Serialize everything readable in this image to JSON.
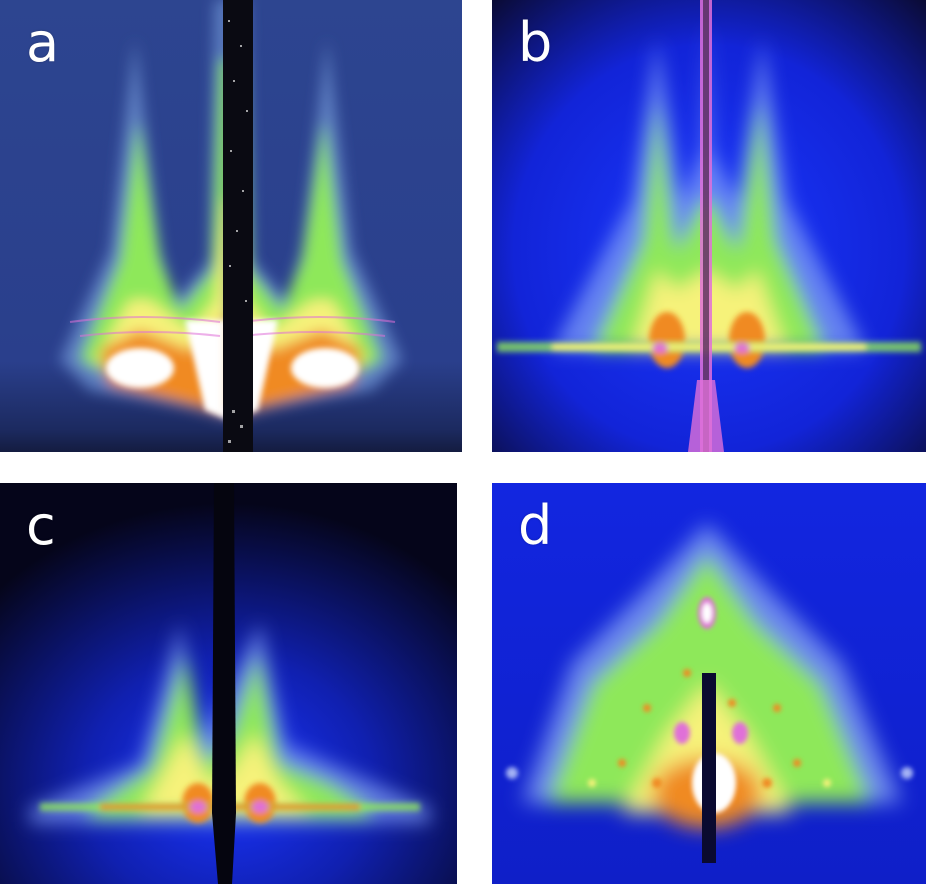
{
  "panels": [
    {
      "id": "a",
      "label": "a"
    },
    {
      "id": "b",
      "label": "b"
    },
    {
      "id": "c",
      "label": "c"
    },
    {
      "id": "d",
      "label": "d"
    }
  ],
  "colors": {
    "background_navy": "#2d4590",
    "background_blue": "#1224e0",
    "background_black": "#05051a",
    "intensity_green": "#8ee85a",
    "intensity_yellow": "#f6f27a",
    "intensity_orange": "#f08a24",
    "intensity_magenta": "#e070d8",
    "intensity_white": "#ffffff",
    "beamstop": "#0a0a12"
  }
}
